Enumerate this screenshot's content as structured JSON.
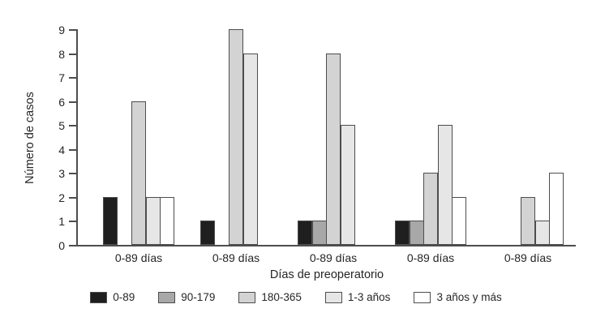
{
  "chart_data": {
    "type": "bar",
    "title": "",
    "ylabel": "Número de casos",
    "xlabel": "Días de preoperatorio",
    "ylim": [
      0,
      9
    ],
    "yticks": [
      0,
      1,
      2,
      3,
      4,
      5,
      6,
      7,
      8,
      9
    ],
    "grid": false,
    "legend_position": "bottom",
    "categories": [
      "0-89 días",
      "0-89 días",
      "0-89 días",
      "0-89 días",
      "0-89 días"
    ],
    "series": [
      {
        "name": "0-89",
        "color": "#1f1f1f",
        "values": [
          2,
          1,
          1,
          1,
          0
        ]
      },
      {
        "name": "90-179",
        "color": "#a8a8a8",
        "values": [
          0,
          0,
          1,
          1,
          0
        ]
      },
      {
        "name": "180-365",
        "color": "#d3d3d3",
        "values": [
          6,
          9,
          8,
          3,
          2
        ]
      },
      {
        "name": "1-3 años",
        "color": "#e6e6e6",
        "values": [
          2,
          8,
          5,
          5,
          1
        ]
      },
      {
        "name": "3 años y más",
        "color": "#ffffff",
        "values": [
          2,
          0,
          0,
          2,
          3
        ]
      }
    ]
  },
  "colors": {
    "background": "#ffffff",
    "axis": "#4d4d4d",
    "text": "#262626",
    "bar_border": "#4d4d4d"
  }
}
